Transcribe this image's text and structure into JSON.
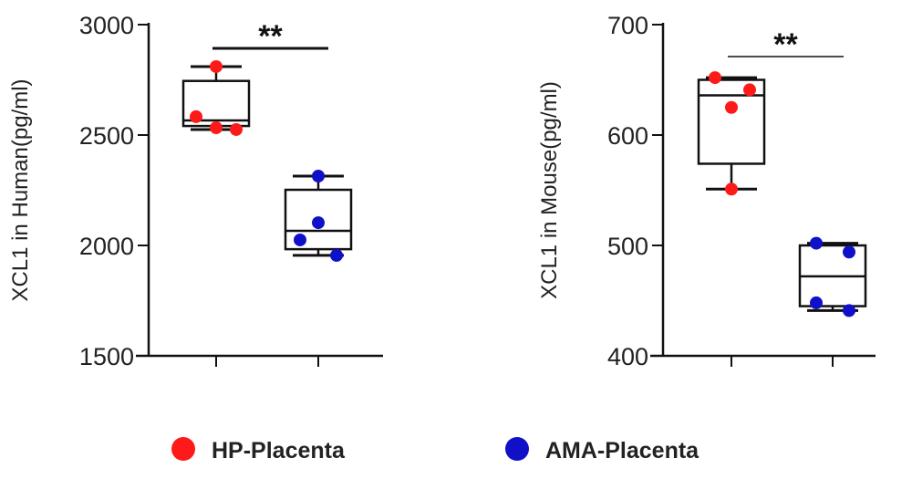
{
  "chart_data": [
    {
      "type": "box",
      "ylabel": "XCL1  in Human(pg/ml)",
      "ylim": [
        1500,
        3000
      ],
      "yticks": [
        "1500",
        "2000",
        "2500",
        "3000"
      ],
      "significance": "**",
      "categories": [
        "HP-Placenta",
        "AMA-Placenta"
      ],
      "series": [
        {
          "name": "HP-Placenta",
          "min": 2525,
          "q1": 2541,
          "median": 2566,
          "q3": 2745,
          "max": 2810,
          "points": [
            2810,
            2583,
            2533,
            2525
          ]
        },
        {
          "name": "AMA-Placenta",
          "min": 1955,
          "q1": 1983,
          "median": 2066,
          "q3": 2252,
          "max": 2314,
          "points": [
            2314,
            2103,
            2025,
            1955
          ]
        }
      ]
    },
    {
      "type": "box",
      "ylabel": "XCL1  in Mouse(pg/ml)",
      "ylim": [
        400,
        700
      ],
      "yticks": [
        "400",
        "500",
        "600",
        "700"
      ],
      "significance": "**",
      "categories": [
        "HP-Placenta",
        "AMA-Placenta"
      ],
      "series": [
        {
          "name": "HP-Placenta",
          "min": 551,
          "q1": 574,
          "median": 636,
          "q3": 650,
          "max": 652,
          "points": [
            652,
            641,
            625,
            551
          ]
        },
        {
          "name": "AMA-Placenta",
          "min": 441,
          "q1": 445,
          "median": 472,
          "q3": 500,
          "max": 502,
          "points": [
            502,
            494,
            448,
            441
          ]
        }
      ]
    }
  ],
  "legend": [
    {
      "label": "HP-Placenta",
      "color": "#ff1a1a"
    },
    {
      "label": "AMA-Placenta",
      "color": "#1010c8"
    }
  ]
}
